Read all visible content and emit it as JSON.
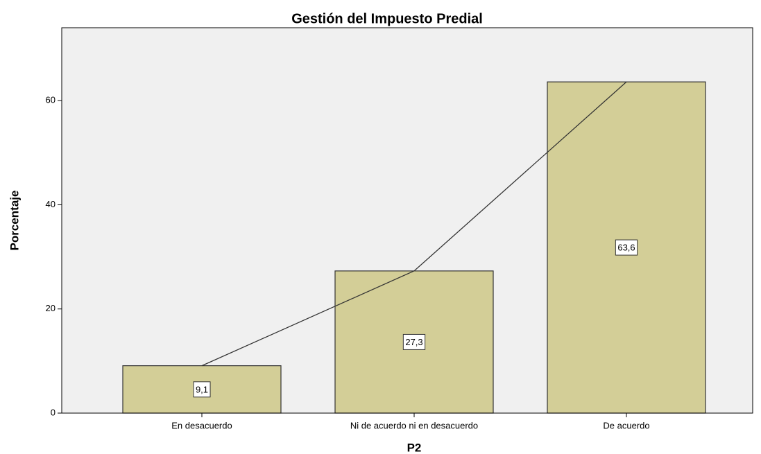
{
  "chart_data": {
    "type": "bar",
    "title": "Gestión del Impuesto Predial",
    "xlabel": "P2",
    "ylabel": "Porcentaje",
    "categories": [
      "En desacuerdo",
      "Ni de acuerdo ni en desacuerdo",
      "De acuerdo"
    ],
    "values": [
      9.1,
      27.3,
      63.6
    ],
    "value_labels": [
      "9,1",
      "27,3",
      "63,6"
    ],
    "color": "#d3ce97",
    "line": true,
    "ylim": [
      0,
      74
    ],
    "yticks": [
      0,
      20,
      40,
      60
    ]
  }
}
